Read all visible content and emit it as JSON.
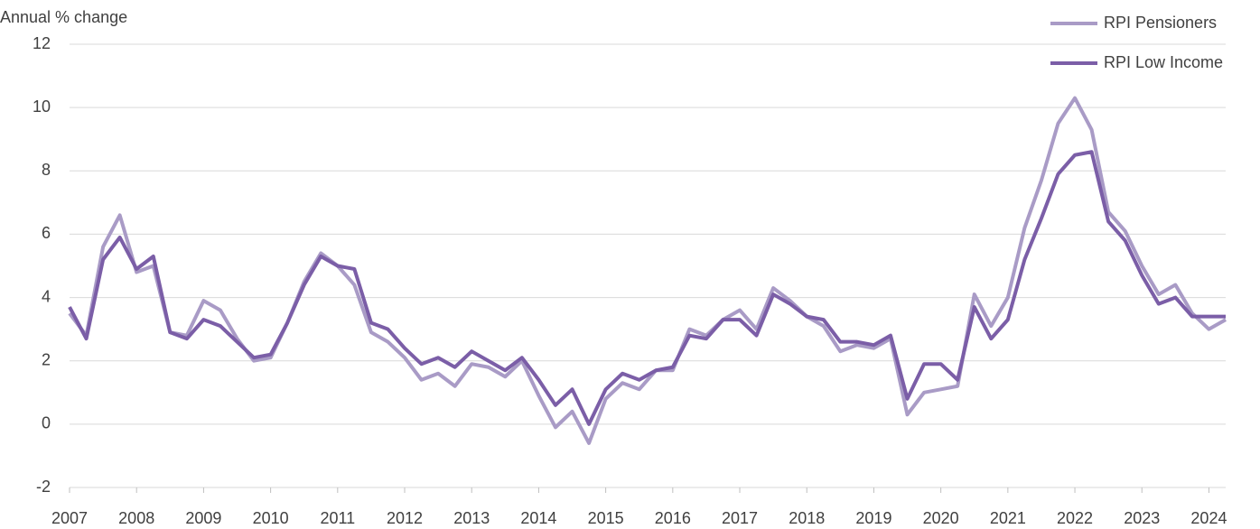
{
  "chart_data": {
    "type": "line",
    "y_label": "Annual % change",
    "x": [
      2007,
      2007.25,
      2007.5,
      2007.75,
      2008,
      2008.25,
      2008.5,
      2008.75,
      2009,
      2009.25,
      2009.5,
      2009.75,
      2010,
      2010.25,
      2010.5,
      2010.75,
      2011,
      2011.25,
      2011.5,
      2011.75,
      2012,
      2012.25,
      2012.5,
      2012.75,
      2013,
      2013.25,
      2013.5,
      2013.75,
      2014,
      2014.25,
      2014.5,
      2014.75,
      2015,
      2015.25,
      2015.5,
      2015.75,
      2016,
      2016.25,
      2016.5,
      2016.75,
      2017,
      2017.25,
      2017.5,
      2017.75,
      2018,
      2018.25,
      2018.5,
      2018.75,
      2019,
      2019.25,
      2019.5,
      2019.75,
      2020,
      2020.25,
      2020.5,
      2020.75,
      2021,
      2021.25,
      2021.5,
      2021.75,
      2022,
      2022.25,
      2022.5,
      2022.75,
      2023,
      2023.25,
      2023.5,
      2023.75,
      2024,
      2024.25
    ],
    "series": [
      {
        "name": "RPI Pensioners",
        "color": "#a99bc6",
        "values": [
          3.5,
          2.8,
          5.6,
          6.6,
          4.8,
          5.0,
          2.9,
          2.8,
          3.9,
          3.6,
          2.7,
          2.0,
          2.1,
          3.2,
          4.5,
          5.4,
          5.0,
          4.4,
          2.9,
          2.6,
          2.1,
          1.4,
          1.6,
          1.2,
          1.9,
          1.8,
          1.5,
          2.0,
          0.9,
          -0.1,
          0.4,
          -0.6,
          0.8,
          1.3,
          1.1,
          1.7,
          1.7,
          3.0,
          2.8,
          3.3,
          3.6,
          3.0,
          4.3,
          3.9,
          3.4,
          3.1,
          2.3,
          2.5,
          2.4,
          2.7,
          0.3,
          1.0,
          1.1,
          1.2,
          4.1,
          3.1,
          4.0,
          6.2,
          7.7,
          9.5,
          10.3,
          9.3,
          6.7,
          6.1,
          5.0,
          4.1,
          4.4,
          3.5,
          3.0,
          3.3
        ]
      },
      {
        "name": "RPI Low Income",
        "color": "#7b5ea7",
        "values": [
          3.7,
          2.7,
          5.2,
          5.9,
          4.9,
          5.3,
          2.9,
          2.7,
          3.3,
          3.1,
          2.6,
          2.1,
          2.2,
          3.2,
          4.4,
          5.3,
          5.0,
          4.9,
          3.2,
          3.0,
          2.4,
          1.9,
          2.1,
          1.8,
          2.3,
          2.0,
          1.7,
          2.1,
          1.4,
          0.6,
          1.1,
          0.0,
          1.1,
          1.6,
          1.4,
          1.7,
          1.8,
          2.8,
          2.7,
          3.3,
          3.3,
          2.8,
          4.1,
          3.8,
          3.4,
          3.3,
          2.6,
          2.6,
          2.5,
          2.8,
          0.8,
          1.9,
          1.9,
          1.4,
          3.7,
          2.7,
          3.3,
          5.2,
          6.5,
          7.9,
          8.5,
          8.6,
          6.4,
          5.8,
          4.7,
          3.8,
          4.0,
          3.4,
          3.4,
          3.4
        ]
      }
    ],
    "xlim": [
      2007,
      2024.25
    ],
    "xticks": [
      2007,
      2008,
      2009,
      2010,
      2011,
      2012,
      2013,
      2014,
      2015,
      2016,
      2017,
      2018,
      2019,
      2020,
      2021,
      2022,
      2023,
      2024
    ],
    "ylim": [
      -2,
      12
    ],
    "yticks": [
      -2,
      0,
      2,
      4,
      6,
      8,
      10,
      12
    ],
    "grid": true,
    "legend": "top-right"
  }
}
